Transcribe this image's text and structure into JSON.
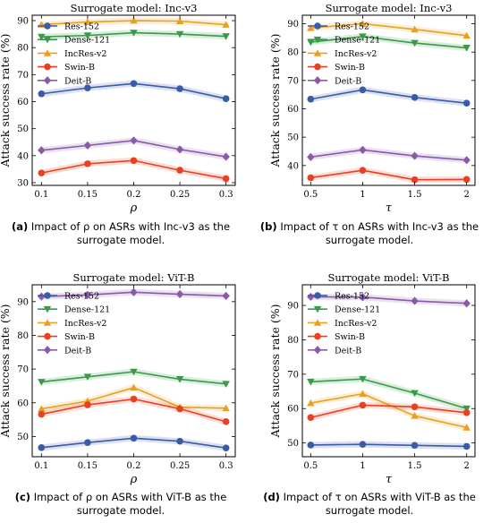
{
  "colors": {
    "Res-152": "#3a5ba8",
    "Dense-121": "#3a9a4a",
    "IncRes-v2": "#e8a020",
    "Swin-B": "#e84020",
    "Deit-B": "#8a5aa8"
  },
  "chart_data": [
    {
      "type": "line",
      "panel": "a",
      "title": "Surrogate model: Inc-v3",
      "xlabel": "ρ",
      "ylabel": "Attack success rate (%)",
      "x": [
        "0.1",
        "0.15",
        "0.2",
        "0.25",
        "0.3"
      ],
      "xvals": [
        0.1,
        0.15,
        0.2,
        0.25,
        0.3
      ],
      "xlim": [
        0.09,
        0.31
      ],
      "ylim": [
        29,
        92
      ],
      "yticks": [
        30,
        40,
        50,
        60,
        70,
        80,
        90
      ],
      "legend": "top-left",
      "series": [
        {
          "name": "Res-152",
          "color": "#3a5ba8",
          "marker": "circle",
          "values": [
            62.9,
            65.1,
            66.7,
            64.8,
            61.1
          ]
        },
        {
          "name": "Dense-121",
          "color": "#3a9a4a",
          "marker": "triangle-down",
          "values": [
            84.0,
            84.5,
            85.5,
            85.0,
            84.2
          ]
        },
        {
          "name": "IncRes-v2",
          "color": "#e8a020",
          "marker": "triangle-up",
          "values": [
            88.5,
            89.5,
            90.0,
            89.8,
            88.5
          ]
        },
        {
          "name": "Swin-B",
          "color": "#e84020",
          "marker": "circle",
          "values": [
            33.6,
            37.0,
            38.2,
            34.6,
            31.5
          ]
        },
        {
          "name": "Deit-B",
          "color": "#8a5aa8",
          "marker": "diamond",
          "values": [
            42.0,
            43.8,
            45.6,
            42.3,
            39.6
          ]
        }
      ],
      "caption_label": "(a)",
      "caption_text": "Impact of ρ on ASRs with Inc-v3 as the surrogate model."
    },
    {
      "type": "line",
      "panel": "b",
      "title": "Surrogate model: Inc-v3",
      "xlabel": "τ",
      "ylabel": "Attack success rate (%)",
      "x": [
        "0.5",
        "1",
        "1.5",
        "2"
      ],
      "xvals": [
        0.5,
        1,
        1.5,
        2
      ],
      "xlim": [
        0.42,
        2.08
      ],
      "ylim": [
        33,
        93
      ],
      "yticks": [
        40,
        50,
        60,
        70,
        80,
        90
      ],
      "legend": "top-left",
      "series": [
        {
          "name": "Res-152",
          "color": "#3a5ba8",
          "marker": "circle",
          "values": [
            63.4,
            66.7,
            64.0,
            62.0
          ]
        },
        {
          "name": "Dense-121",
          "color": "#3a9a4a",
          "marker": "triangle-down",
          "values": [
            83.5,
            85.5,
            83.2,
            81.5
          ]
        },
        {
          "name": "IncRes-v2",
          "color": "#e8a020",
          "marker": "triangle-up",
          "values": [
            88.5,
            90.0,
            88.0,
            85.8
          ]
        },
        {
          "name": "Swin-B",
          "color": "#e84020",
          "marker": "circle",
          "values": [
            35.7,
            38.3,
            35.0,
            35.1
          ]
        },
        {
          "name": "Deit-B",
          "color": "#8a5aa8",
          "marker": "diamond",
          "values": [
            43.0,
            45.5,
            43.4,
            41.9
          ]
        }
      ],
      "caption_label": "(b)",
      "caption_text": "Impact of τ on ASRs with Inc-v3 as the surrogate model."
    },
    {
      "type": "line",
      "panel": "c",
      "title": "Surrogate model: ViT-B",
      "xlabel": "ρ",
      "ylabel": "Attack success rate (%)",
      "x": [
        "0.1",
        "0.15",
        "0.2",
        "0.25",
        "0.3"
      ],
      "xvals": [
        0.1,
        0.15,
        0.2,
        0.25,
        0.3
      ],
      "xlim": [
        0.09,
        0.31
      ],
      "ylim": [
        44,
        95
      ],
      "yticks": [
        50,
        60,
        70,
        80,
        90
      ],
      "legend": "top-left",
      "series": [
        {
          "name": "Res-152",
          "color": "#3a5ba8",
          "marker": "circle",
          "values": [
            46.7,
            48.2,
            49.5,
            48.6,
            46.6
          ]
        },
        {
          "name": "Dense-121",
          "color": "#3a9a4a",
          "marker": "triangle-down",
          "values": [
            66.2,
            67.7,
            69.2,
            67.0,
            65.6
          ]
        },
        {
          "name": "IncRes-v2",
          "color": "#e8a020",
          "marker": "triangle-up",
          "values": [
            58.2,
            60.5,
            64.5,
            58.7,
            58.4
          ]
        },
        {
          "name": "Swin-B",
          "color": "#e84020",
          "marker": "circle",
          "values": [
            56.6,
            59.4,
            61.1,
            58.2,
            54.4
          ]
        },
        {
          "name": "Deit-B",
          "color": "#8a5aa8",
          "marker": "diamond",
          "values": [
            91.5,
            92.0,
            92.8,
            92.2,
            91.7
          ]
        }
      ],
      "caption_label": "(c)",
      "caption_text": "Impact of ρ on ASRs with ViT-B as the surrogate model."
    },
    {
      "type": "line",
      "panel": "d",
      "title": "Surrogate model: ViT-B",
      "xlabel": "τ",
      "ylabel": "Attack success rate (%)",
      "x": [
        "0.5",
        "1",
        "1.5",
        "2"
      ],
      "xvals": [
        0.5,
        1,
        1.5,
        2
      ],
      "xlim": [
        0.42,
        2.08
      ],
      "ylim": [
        46,
        96
      ],
      "yticks": [
        50,
        60,
        70,
        80,
        90
      ],
      "legend": "top-left",
      "series": [
        {
          "name": "Res-152",
          "color": "#3a5ba8",
          "marker": "circle",
          "values": [
            49.4,
            49.6,
            49.3,
            49.0
          ]
        },
        {
          "name": "Dense-121",
          "color": "#3a9a4a",
          "marker": "triangle-down",
          "values": [
            67.8,
            68.6,
            64.5,
            60.0
          ]
        },
        {
          "name": "IncRes-v2",
          "color": "#e8a020",
          "marker": "triangle-up",
          "values": [
            61.6,
            64.3,
            57.9,
            54.5
          ]
        },
        {
          "name": "Swin-B",
          "color": "#e84020",
          "marker": "circle",
          "values": [
            57.4,
            61.0,
            60.5,
            58.8
          ]
        },
        {
          "name": "Deit-B",
          "color": "#8a5aa8",
          "marker": "diamond",
          "values": [
            92.5,
            92.4,
            91.3,
            90.6
          ]
        }
      ],
      "caption_label": "(d)",
      "caption_text": "Impact of τ on ASRs with ViT-B as the surrogate model."
    }
  ]
}
